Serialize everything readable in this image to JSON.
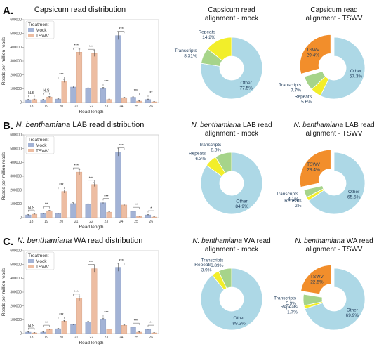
{
  "colors": {
    "mock": "#a3b3d6",
    "tswv": "#edbda2",
    "other": "#add8e6",
    "transcripts": "#a6d48a",
    "repeats": "#f2ee2a",
    "tswv_slice": "#f28e2b"
  },
  "legend": {
    "title": "Treatment",
    "mock": "Mock",
    "tswv": "TSWV"
  },
  "chart_data": [
    {
      "type": "bar",
      "letter": "A.",
      "title": "Capsicum read distribution",
      "xlabel": "Read length",
      "ylabel": "Reads per million reads",
      "ylim": [
        0,
        600000
      ],
      "yticks": [
        "0",
        "100000",
        "200000",
        "300000",
        "400000",
        "500000",
        "600000"
      ],
      "categories": [
        "18",
        "19",
        "20",
        "21",
        "22",
        "23",
        "24",
        "25",
        "26"
      ],
      "series": [
        {
          "name": "Mock",
          "values": [
            20000,
            20000,
            25000,
            112000,
            100000,
            103000,
            485000,
            38000,
            22000
          ]
        },
        {
          "name": "TSWV",
          "values": [
            22000,
            40000,
            155000,
            365000,
            355000,
            22000,
            35000,
            10000,
            5000
          ]
        }
      ],
      "significance": [
        "N.S",
        "N.S",
        "***",
        "***",
        "***",
        "***",
        "***",
        "***",
        "**"
      ]
    },
    {
      "type": "pie",
      "title": "Capsicum read alignment - mock",
      "slices": [
        {
          "label": "Other",
          "value": 77.5,
          "display": "77.5%",
          "color": "other"
        },
        {
          "label": "Transcripts",
          "value": 8.31,
          "display": "8.31%",
          "color": "transcripts"
        },
        {
          "label": "Repeats",
          "value": 14.2,
          "display": "14.2%",
          "color": "repeats"
        }
      ]
    },
    {
      "type": "pie",
      "title": "Capsicum read alignment - TSWV",
      "slices": [
        {
          "label": "Other",
          "value": 57.3,
          "display": "57.3%",
          "color": "other"
        },
        {
          "label": "Repeats",
          "value": 5.6,
          "display": "5.6%",
          "color": "repeats"
        },
        {
          "label": "Transcripts",
          "value": 7.7,
          "display": "7.7%",
          "color": "transcripts"
        },
        {
          "label": "TSWV",
          "value": 29.4,
          "display": "29.4%",
          "color": "tswv_slice",
          "exploded": true
        }
      ]
    },
    {
      "type": "bar",
      "letter": "B.",
      "title": "N. benthamiana LAB read distribution",
      "title_italic": "N. benthamiana",
      "title_rest": " LAB read distribution",
      "xlabel": "Read length",
      "ylabel": "Reads per million reads",
      "ylim": [
        0,
        600000
      ],
      "yticks": [
        "0",
        "100000",
        "200000",
        "300000",
        "400000",
        "500000",
        "600000"
      ],
      "categories": [
        "18",
        "19",
        "20",
        "21",
        "22",
        "23",
        "24",
        "25",
        "26"
      ],
      "series": [
        {
          "name": "Mock",
          "values": [
            20000,
            30000,
            30000,
            102000,
            95000,
            108000,
            475000,
            45000,
            20000
          ]
        },
        {
          "name": "TSWV",
          "values": [
            25000,
            50000,
            190000,
            330000,
            240000,
            40000,
            92000,
            10000,
            5000
          ]
        }
      ],
      "significance": [
        "N.S",
        "**",
        "***",
        "***",
        "***",
        "***",
        "***",
        "**",
        "*"
      ]
    },
    {
      "type": "pie",
      "title": "N. benthamiana LAB read alignment - mock",
      "title_italic": "N. benthamiana",
      "title_rest": " LAB read",
      "title_line2": "alignment - mock",
      "slices": [
        {
          "label": "Other",
          "value": 84.9,
          "display": "84.9%",
          "color": "other"
        },
        {
          "label": "Repeats",
          "value": 6.3,
          "display": "6.3%",
          "color": "repeats"
        },
        {
          "label": "Transcripts",
          "value": 8.8,
          "display": "8.8%",
          "color": "transcripts"
        }
      ]
    },
    {
      "type": "pie",
      "title": "N. benthamiana LAB read alignment - TSWV",
      "title_italic": "N. benthamiana",
      "title_rest": " LAB read",
      "title_line2": "alignment - TSWV",
      "slices": [
        {
          "label": "Other",
          "value": 65.5,
          "display": "65.5%",
          "color": "other"
        },
        {
          "label": "Repeats",
          "value": 2,
          "display": "2%",
          "color": "repeats"
        },
        {
          "label": "Transcripts",
          "value": 4.1,
          "display": "4.1%",
          "color": "transcripts"
        },
        {
          "label": "TSWV",
          "value": 28.4,
          "display": "28.4%",
          "color": "tswv_slice",
          "exploded": true
        }
      ]
    },
    {
      "type": "bar",
      "letter": "C.",
      "title": "N. benthamiana WA read distribution",
      "title_italic": "N. benthamiana",
      "title_rest": " WA read distribution",
      "xlabel": "Read length",
      "ylabel": "Reads per million reads",
      "ylim": [
        0,
        600000
      ],
      "yticks": [
        "0",
        "100000",
        "200000",
        "300000",
        "400000",
        "500000",
        "600000"
      ],
      "categories": [
        "18",
        "19",
        "20",
        "21",
        "22",
        "23",
        "24",
        "25",
        "26"
      ],
      "series": [
        {
          "name": "Mock",
          "values": [
            10000,
            10000,
            35000,
            65000,
            85000,
            105000,
            480000,
            45000,
            30000
          ]
        },
        {
          "name": "TSWV",
          "values": [
            5000,
            30000,
            90000,
            255000,
            470000,
            30000,
            60000,
            10000,
            5000
          ]
        }
      ],
      "significance": [
        "N.S",
        "**",
        "***",
        "***",
        "***",
        "***",
        "***",
        "***",
        "**"
      ]
    },
    {
      "type": "pie",
      "title": "N. benthamiana WA read alignment - mock",
      "title_italic": "N. benthamiana",
      "title_rest": " WA read",
      "title_line2": "alignment - mock",
      "slices": [
        {
          "label": "Other",
          "value": 89.2,
          "display": "89.2%",
          "color": "other"
        },
        {
          "label": "Repeats",
          "value": 3.9,
          "display": "3.9%",
          "color": "repeats"
        },
        {
          "label": "Transcripts",
          "value": 6.89,
          "display": "6.89%",
          "color": "transcripts"
        }
      ]
    },
    {
      "type": "pie",
      "title": "N. benthamiana WA read alignment - TSWV",
      "title_italic": "N. benthamiana",
      "title_rest": " WA read",
      "title_line2": "alignment - TSWV",
      "slices": [
        {
          "label": "Other",
          "value": 69.9,
          "display": "69.9%",
          "color": "other"
        },
        {
          "label": "Repeats",
          "value": 1.7,
          "display": "1.7%",
          "color": "repeats"
        },
        {
          "label": "Transcripts",
          "value": 5.9,
          "display": "5.9%",
          "color": "transcripts"
        },
        {
          "label": "TSWV",
          "value": 22.5,
          "display": "22.5%",
          "color": "tswv_slice",
          "exploded": true
        }
      ]
    }
  ]
}
